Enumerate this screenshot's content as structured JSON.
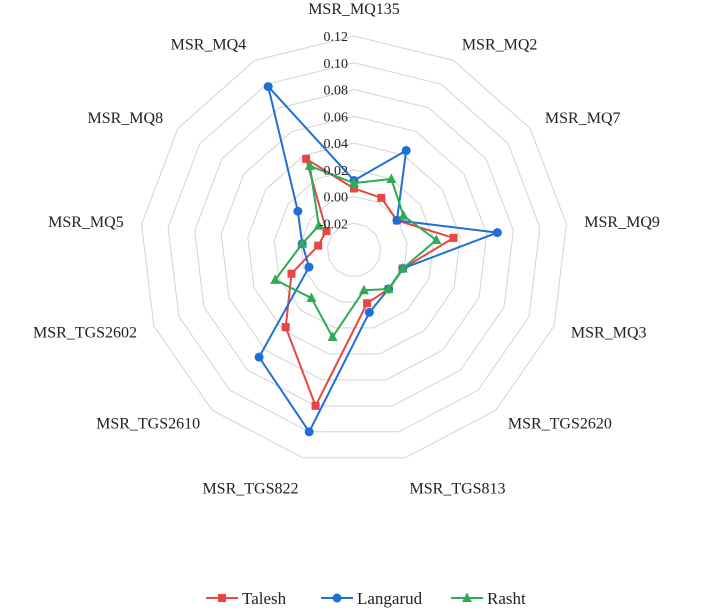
{
  "chart_data": {
    "type": "radar",
    "axes": [
      "MSR_MQ135",
      "MSR_MQ2",
      "MSR_MQ7",
      "MSR_MQ9",
      "MSR_MQ3",
      "MSR_TGS2620",
      "MSR_TGS813",
      "MSR_TGS822",
      "MSR_TGS2610",
      "MSR_TGS2602",
      "MSR_MQ5",
      "MSR_MQ8",
      "MSR_MQ4"
    ],
    "rlim": [
      -0.04,
      0.12
    ],
    "ticks": [
      -0.02,
      0.0,
      0.02,
      0.04,
      0.06,
      0.08,
      0.1,
      0.12
    ],
    "tick_labels": [
      "-0.02",
      "0.00",
      "0.02",
      "0.04",
      "0.06",
      "0.08",
      "0.10",
      "0.12"
    ],
    "grid": true,
    "legend_position": "bottom",
    "series": [
      {
        "name": "Talesh",
        "color": "#e84545",
        "marker": "square",
        "values": [
          0.006,
          0.004,
          -0.001,
          0.035,
          -0.001,
          -0.001,
          0.001,
          0.08,
          0.037,
          0.01,
          -0.013,
          -0.015,
          0.037
        ]
      },
      {
        "name": "Langarud",
        "color": "#1f6fd6",
        "marker": "circle",
        "values": [
          0.012,
          0.044,
          -0.001,
          0.068,
          -0.001,
          -0.001,
          0.008,
          0.1,
          0.067,
          -0.004,
          -0.001,
          0.011,
          0.098
        ]
      },
      {
        "name": "Rasht",
        "color": "#2eab55",
        "marker": "triangle",
        "values": [
          0.01,
          0.02,
          0.005,
          0.022,
          -0.001,
          -0.001,
          -0.009,
          0.027,
          0.008,
          0.023,
          -0.001,
          -0.008,
          0.031
        ]
      }
    ]
  }
}
